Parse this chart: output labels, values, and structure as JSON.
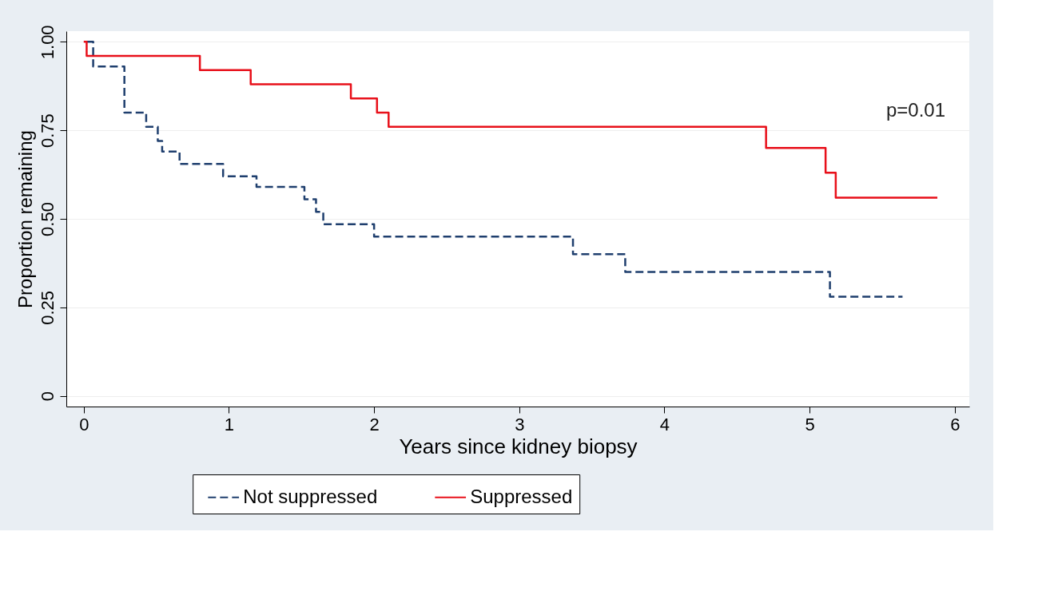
{
  "chart_data": {
    "type": "step",
    "xlabel": "Years since kidney biopsy",
    "ylabel": "Proportion remaining",
    "series": [
      {
        "name": "Not suppressed",
        "color": "#1f3f6e",
        "line_style": "dashed",
        "x": [
          0.02,
          0.065,
          0.28,
          0.43,
          0.51,
          0.54,
          0.66,
          0.96,
          1.19,
          1.52,
          1.6,
          1.65,
          2.0,
          3.37,
          3.73,
          5.14,
          5.64
        ],
        "values": [
          1.0,
          0.93,
          0.8,
          0.76,
          0.72,
          0.69,
          0.655,
          0.62,
          0.59,
          0.555,
          0.52,
          0.485,
          0.45,
          0.4,
          0.35,
          0.28,
          0.28
        ]
      },
      {
        "name": "Suppressed",
        "color": "#e8101a",
        "line_style": "solid",
        "x": [
          0.0,
          0.02,
          0.8,
          1.15,
          1.84,
          2.02,
          2.1,
          4.7,
          5.11,
          5.18,
          5.88
        ],
        "values": [
          1.0,
          0.96,
          0.92,
          0.88,
          0.84,
          0.8,
          0.76,
          0.7,
          0.63,
          0.56,
          0.56
        ]
      }
    ],
    "xlim": [
      -0.12,
      6.1
    ],
    "xticks": [
      0,
      1,
      2,
      3,
      4,
      5,
      6
    ],
    "ylim": [
      -0.03,
      1.03
    ],
    "yticks": [
      {
        "value": 0,
        "label": "0"
      },
      0.25,
      {
        "value": 0.5,
        "label": "0.50"
      },
      0.75,
      {
        "value": 1,
        "label": "1.00"
      }
    ],
    "grid": "y",
    "legend": "bottom",
    "annotations": [
      "p=0.01"
    ]
  }
}
